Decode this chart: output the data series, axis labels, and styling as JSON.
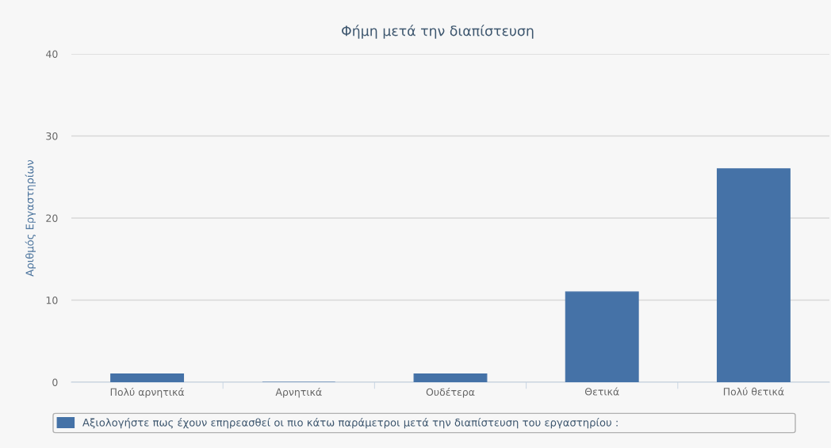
{
  "chart_data": {
    "type": "bar",
    "title": "Φήμη μετά την διαπίστευση",
    "ylabel": "Αριθμός Εργαστηρίων",
    "categories": [
      "Πολύ αρνητικά",
      "Αρνητικά",
      "Ουδέτερα",
      "Θετικά",
      "Πολύ θετικά"
    ],
    "series": [
      {
        "name": "Αξιολογήστε πως έχουν επηρεασθεί οι πιο κάτω παράμετροι μετά την διαπίστευση του εργαστηρίου :",
        "color": "#4572a7",
        "values": [
          1,
          0,
          1,
          11,
          26
        ]
      }
    ],
    "ylim": [
      0,
      40
    ],
    "yticks": [
      0,
      10,
      20,
      30,
      40
    ],
    "grid": "y",
    "legend": "bottom"
  }
}
